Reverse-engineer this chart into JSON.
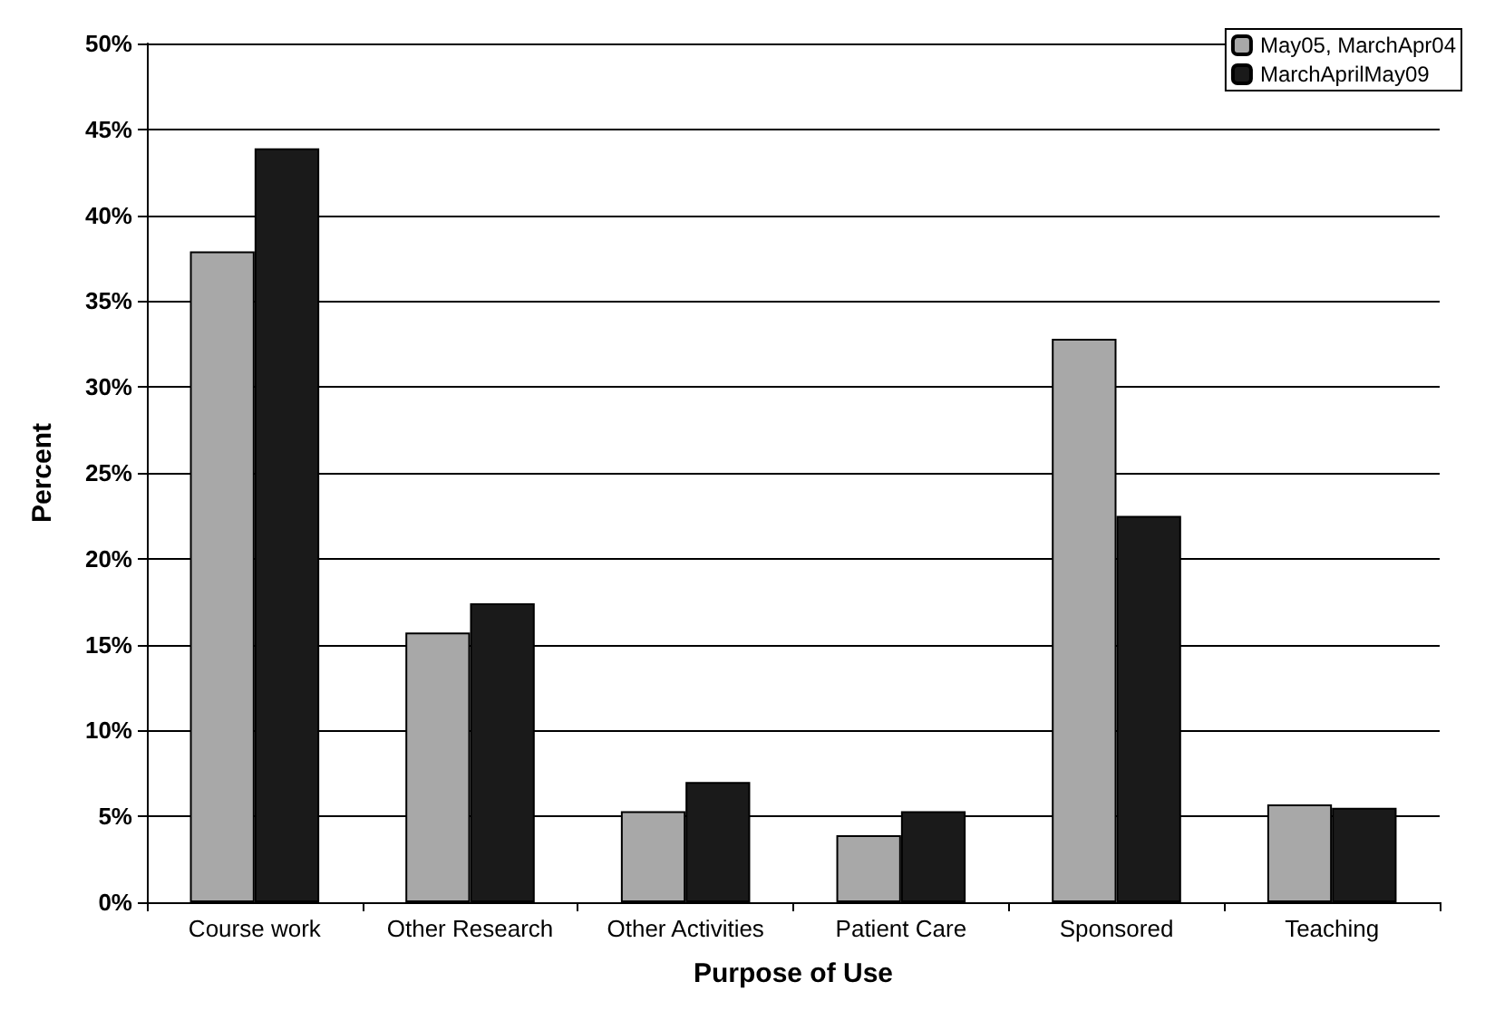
{
  "chart_data": {
    "type": "bar",
    "xlabel": "Purpose of Use",
    "ylabel": "Percent",
    "categories": [
      "Course work",
      "Other Research",
      "Other Activities",
      "Patient Care",
      "Sponsored",
      "Teaching"
    ],
    "series": [
      {
        "name": "May05, MarchApr04",
        "color": "#a8a8a8",
        "values": [
          37.9,
          15.7,
          5.3,
          3.9,
          32.8,
          5.7
        ]
      },
      {
        "name": "MarchAprilMay09",
        "color": "#1a1a1a",
        "values": [
          43.9,
          17.4,
          7.0,
          5.3,
          22.5,
          5.5
        ]
      }
    ],
    "ylim": [
      0,
      50
    ],
    "yticks": [
      {
        "value": 0,
        "label": "0%"
      },
      {
        "value": 5,
        "label": "5%"
      },
      {
        "value": 10,
        "label": "10%"
      },
      {
        "value": 15,
        "label": "15%"
      },
      {
        "value": 20,
        "label": "20%"
      },
      {
        "value": 25,
        "label": "25%"
      },
      {
        "value": 30,
        "label": "30%"
      },
      {
        "value": 35,
        "label": "35%"
      },
      {
        "value": 40,
        "label": "40%"
      },
      {
        "value": 45,
        "label": "45%"
      },
      {
        "value": 50,
        "label": "50%"
      }
    ],
    "grid": "y",
    "legend": "top right"
  }
}
